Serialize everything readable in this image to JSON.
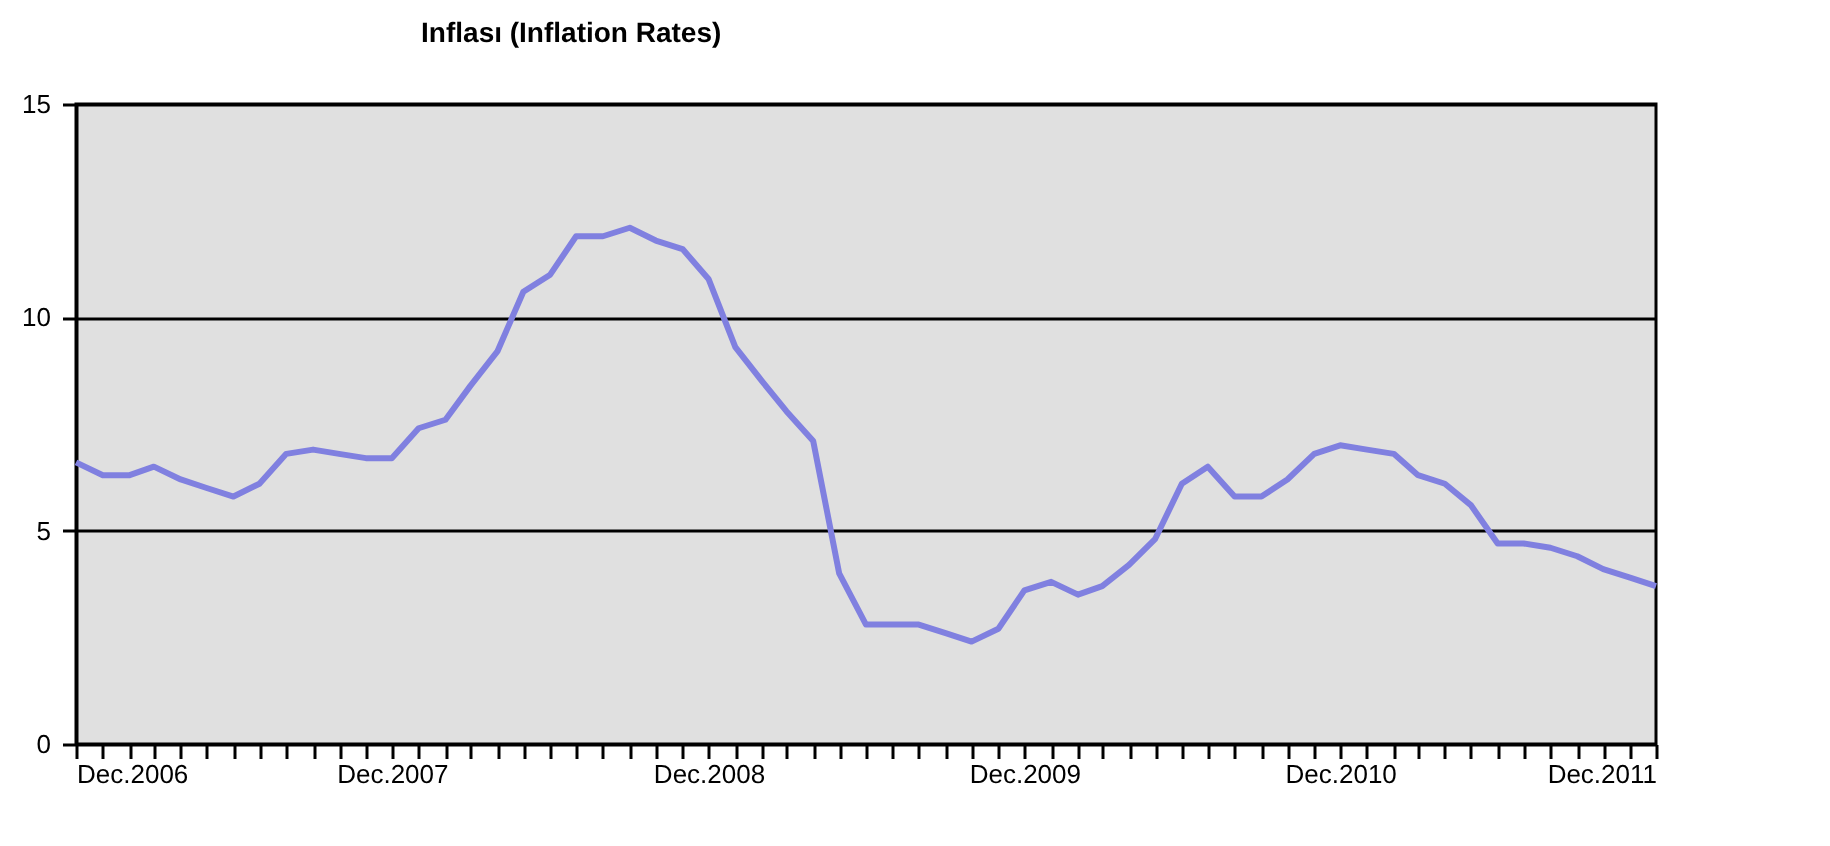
{
  "chart_data": {
    "type": "line",
    "title": "Inflası (Inflation Rates)",
    "x": [
      "2006-12",
      "2007-01",
      "2007-02",
      "2007-03",
      "2007-04",
      "2007-05",
      "2007-06",
      "2007-07",
      "2007-08",
      "2007-09",
      "2007-10",
      "2007-11",
      "2007-12",
      "2008-01",
      "2008-02",
      "2008-03",
      "2008-04",
      "2008-05",
      "2008-06",
      "2008-07",
      "2008-08",
      "2008-09",
      "2008-10",
      "2008-11",
      "2008-12",
      "2009-01",
      "2009-02",
      "2009-03",
      "2009-04",
      "2009-05",
      "2009-06",
      "2009-07",
      "2009-08",
      "2009-09",
      "2009-10",
      "2009-11",
      "2009-12",
      "2010-01",
      "2010-02",
      "2010-03",
      "2010-04",
      "2010-05",
      "2010-06",
      "2010-07",
      "2010-08",
      "2010-09",
      "2010-10",
      "2010-11",
      "2010-12",
      "2011-01",
      "2011-02",
      "2011-03",
      "2011-04",
      "2011-05",
      "2011-06",
      "2011-07",
      "2011-08",
      "2011-09",
      "2011-10",
      "2011-11",
      "2011-12"
    ],
    "series": [
      {
        "color": "#8080e0",
        "values": [
          6.6,
          6.3,
          6.3,
          6.5,
          6.2,
          6.0,
          5.8,
          6.1,
          6.8,
          6.9,
          6.8,
          6.7,
          6.7,
          7.4,
          7.6,
          8.4,
          9.2,
          10.6,
          11.0,
          11.9,
          11.9,
          12.1,
          11.8,
          11.6,
          10.9,
          9.3,
          8.5,
          7.8,
          7.1,
          4.0,
          2.8,
          2.8,
          2.8,
          2.6,
          2.4,
          2.7,
          3.6,
          3.8,
          3.5,
          3.7,
          4.2,
          4.8,
          6.1,
          6.5,
          5.8,
          5.8,
          6.2,
          6.8,
          7.0,
          6.9,
          6.8,
          6.3,
          6.1,
          5.6,
          4.7,
          4.7,
          4.6,
          4.4,
          4.1,
          3.9,
          3.7
        ]
      }
    ],
    "xlim": [
      "2006-12",
      "2011-12"
    ],
    "xticks": [
      {
        "value": "2006-12",
        "label": "Dec.2006"
      },
      {
        "value": "2007-01",
        "label": null
      },
      {
        "value": "2007-02",
        "label": null
      },
      {
        "value": "2007-03",
        "label": null
      },
      {
        "value": "2007-04",
        "label": null
      },
      {
        "value": "2007-05",
        "label": null
      },
      {
        "value": "2007-06",
        "label": null
      },
      {
        "value": "2007-07",
        "label": null
      },
      {
        "value": "2007-08",
        "label": null
      },
      {
        "value": "2007-09",
        "label": null
      },
      {
        "value": "2007-10",
        "label": null
      },
      {
        "value": "2007-11",
        "label": null
      },
      {
        "value": "2007-12",
        "label": "Dec.2007"
      },
      {
        "value": "2008-01",
        "label": null
      },
      {
        "value": "2008-02",
        "label": null
      },
      {
        "value": "2008-03",
        "label": null
      },
      {
        "value": "2008-04",
        "label": null
      },
      {
        "value": "2008-05",
        "label": null
      },
      {
        "value": "2008-06",
        "label": null
      },
      {
        "value": "2008-07",
        "label": null
      },
      {
        "value": "2008-08",
        "label": null
      },
      {
        "value": "2008-09",
        "label": null
      },
      {
        "value": "2008-10",
        "label": null
      },
      {
        "value": "2008-11",
        "label": null
      },
      {
        "value": "2008-12",
        "label": "Dec.2008"
      },
      {
        "value": "2009-01",
        "label": null
      },
      {
        "value": "2009-02",
        "label": null
      },
      {
        "value": "2009-03",
        "label": null
      },
      {
        "value": "2009-04",
        "label": null
      },
      {
        "value": "2009-05",
        "label": null
      },
      {
        "value": "2009-06",
        "label": null
      },
      {
        "value": "2009-07",
        "label": null
      },
      {
        "value": "2009-08",
        "label": null
      },
      {
        "value": "2009-09",
        "label": null
      },
      {
        "value": "2009-10",
        "label": null
      },
      {
        "value": "2009-11",
        "label": null
      },
      {
        "value": "2009-12",
        "label": "Dec.2009"
      },
      {
        "value": "2010-01",
        "label": null
      },
      {
        "value": "2010-02",
        "label": null
      },
      {
        "value": "2010-03",
        "label": null
      },
      {
        "value": "2010-04",
        "label": null
      },
      {
        "value": "2010-05",
        "label": null
      },
      {
        "value": "2010-06",
        "label": null
      },
      {
        "value": "2010-07",
        "label": null
      },
      {
        "value": "2010-08",
        "label": null
      },
      {
        "value": "2010-09",
        "label": null
      },
      {
        "value": "2010-10",
        "label": null
      },
      {
        "value": "2010-11",
        "label": null
      },
      {
        "value": "2010-12",
        "label": "Dec.2010"
      },
      {
        "value": "2011-01",
        "label": null
      },
      {
        "value": "2011-02",
        "label": null
      },
      {
        "value": "2011-03",
        "label": null
      },
      {
        "value": "2011-04",
        "label": null
      },
      {
        "value": "2011-05",
        "label": null
      },
      {
        "value": "2011-06",
        "label": null
      },
      {
        "value": "2011-07",
        "label": null
      },
      {
        "value": "2011-08",
        "label": null
      },
      {
        "value": "2011-09",
        "label": null
      },
      {
        "value": "2011-10",
        "label": null
      },
      {
        "value": "2011-11",
        "label": null
      },
      {
        "value": "2011-12",
        "label": "Dec.2011"
      }
    ],
    "ylim": [
      0,
      15
    ],
    "yticks": [
      0,
      5,
      10,
      15
    ],
    "grid": "y",
    "legend": false,
    "marker": "none",
    "line_style": "solid"
  }
}
